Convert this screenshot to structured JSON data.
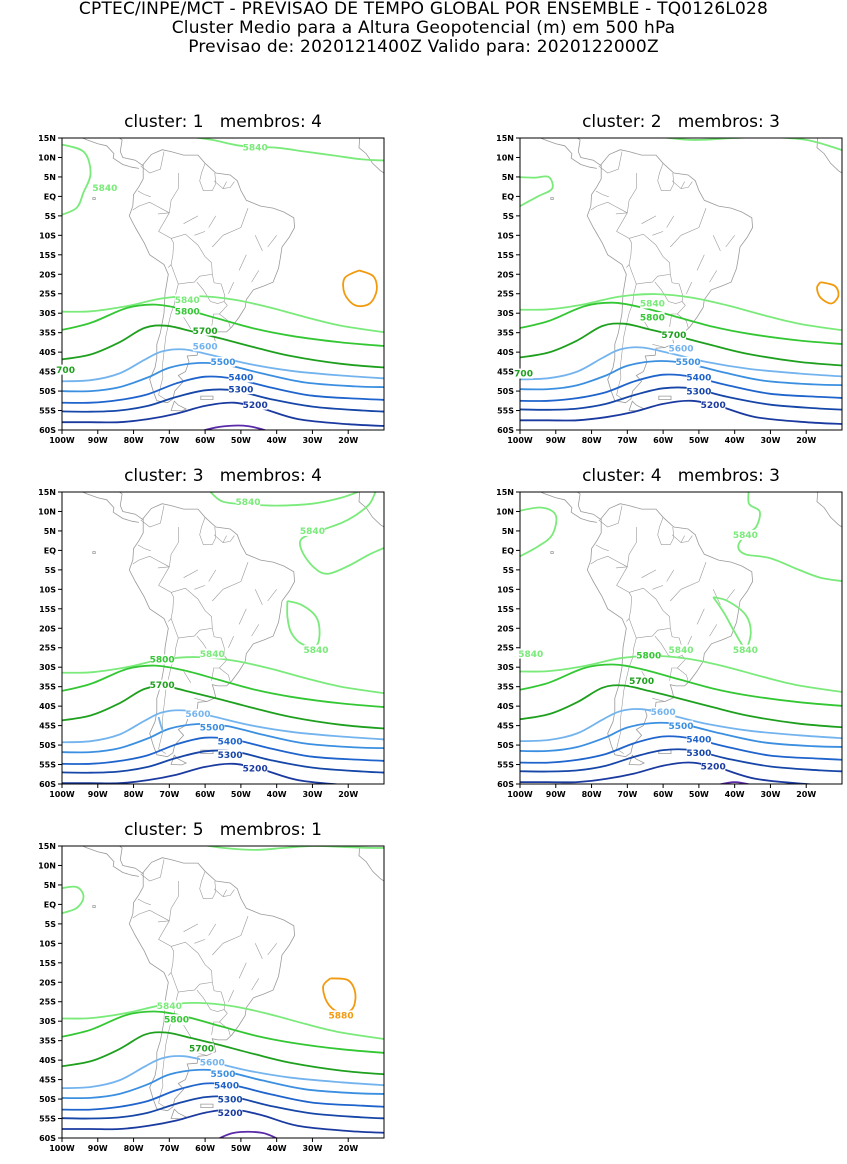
{
  "header": {
    "line1": "CPTEC/INPE/MCT - PREVISAO DE TEMPO GLOBAL POR ENSEMBLE - TQ0126L028",
    "line2": "Cluster Medio para a Altura Geopotencial (m) em 500 hPa",
    "line3": "Previsao de: 2020121400Z    Valido para: 2020122000Z"
  },
  "lat_ticks": [
    "15N",
    "10N",
    "5N",
    "EQ",
    "5S",
    "10S",
    "15S",
    "20S",
    "25S",
    "30S",
    "35S",
    "40S",
    "45S",
    "50S",
    "55S",
    "60S"
  ],
  "lon_ticks": [
    "100W",
    "90W",
    "80W",
    "70W",
    "60W",
    "50W",
    "40W",
    "30W",
    "20W"
  ],
  "colors": {
    "c5840": "#7aea7a",
    "c5800": "#34c734",
    "c5700": "#1ea01e",
    "c5600": "#74b4ee",
    "c5500": "#3b8fe0",
    "c5400": "#1f64cc",
    "c5300": "#1646a8",
    "c5200": "#1a3aa0",
    "c5100": "#5a2aa8",
    "c5880": "#f29a0e",
    "land": "#9a9a9a"
  },
  "clusters": [
    {
      "title": "cluster: 1   membros: 4",
      "labels": [
        {
          "text": "5840",
          "level": "c5840",
          "lon": -46,
          "lat": 12.6
        },
        {
          "text": "5840",
          "level": "c5840",
          "lon": -88,
          "lat": 2.2
        },
        {
          "text": "5840",
          "level": "c5840",
          "lon": -65,
          "lat": -26.5
        },
        {
          "text": "5800",
          "level": "c5800",
          "lon": -65,
          "lat": -29.5
        },
        {
          "text": "5700",
          "level": "c5700",
          "lon": -60,
          "lat": -34.5
        },
        {
          "text": "700",
          "level": "c5700",
          "lon": -99,
          "lat": -44.5
        },
        {
          "text": "5600",
          "level": "c5600",
          "lon": -60,
          "lat": -38.5
        },
        {
          "text": "5500",
          "level": "c5500",
          "lon": -55,
          "lat": -42.5
        },
        {
          "text": "5400",
          "level": "c5400",
          "lon": -50,
          "lat": -46.5
        },
        {
          "text": "5300",
          "level": "c5300",
          "lon": -50,
          "lat": -49.5
        },
        {
          "text": "5200",
          "level": "c5200",
          "lon": -46,
          "lat": -53.5
        }
      ]
    },
    {
      "title": "cluster: 2   membros: 3",
      "labels": [
        {
          "text": "5840",
          "level": "c5840",
          "lon": -63,
          "lat": -27.5
        },
        {
          "text": "5800",
          "level": "c5800",
          "lon": -63,
          "lat": -31
        },
        {
          "text": "5700",
          "level": "c5700",
          "lon": -57,
          "lat": -35.5
        },
        {
          "text": "700",
          "level": "c5700",
          "lon": -99,
          "lat": -45.5
        },
        {
          "text": "5600",
          "level": "c5600",
          "lon": -55,
          "lat": -39
        },
        {
          "text": "5500",
          "level": "c5500",
          "lon": -53,
          "lat": -42.5
        },
        {
          "text": "5400",
          "level": "c5400",
          "lon": -50,
          "lat": -46.5
        },
        {
          "text": "5300",
          "level": "c5300",
          "lon": -50,
          "lat": -50
        },
        {
          "text": "5200",
          "level": "c5200",
          "lon": -46,
          "lat": -53.5
        }
      ]
    },
    {
      "title": "cluster: 3   membros: 4",
      "labels": [
        {
          "text": "5840",
          "level": "c5840",
          "lon": -48,
          "lat": 12.5
        },
        {
          "text": "5840",
          "level": "c5840",
          "lon": -30,
          "lat": 5
        },
        {
          "text": "5840",
          "level": "c5840",
          "lon": -29,
          "lat": -25.5
        },
        {
          "text": "5840",
          "level": "c5840",
          "lon": -58,
          "lat": -26.5
        },
        {
          "text": "5800",
          "level": "c5800",
          "lon": -72,
          "lat": -28
        },
        {
          "text": "5700",
          "level": "c5700",
          "lon": -72,
          "lat": -34.5
        },
        {
          "text": "5600",
          "level": "c5600",
          "lon": -62,
          "lat": -42
        },
        {
          "text": "5500",
          "level": "c5500",
          "lon": -58,
          "lat": -45.5
        },
        {
          "text": "5400",
          "level": "c5400",
          "lon": -53,
          "lat": -49
        },
        {
          "text": "5300",
          "level": "c5300",
          "lon": -53,
          "lat": -52.5
        },
        {
          "text": "5200",
          "level": "c5200",
          "lon": -46,
          "lat": -56
        }
      ]
    },
    {
      "title": "cluster: 4   membros: 3",
      "labels": [
        {
          "text": "5840",
          "level": "c5840",
          "lon": -37,
          "lat": 4
        },
        {
          "text": "5840",
          "level": "c5840",
          "lon": -37,
          "lat": -25.5
        },
        {
          "text": "5840",
          "level": "c5840",
          "lon": -97,
          "lat": -26.5
        },
        {
          "text": "5840",
          "level": "c5840",
          "lon": -55,
          "lat": -25.5
        },
        {
          "text": "5800",
          "level": "c5800",
          "lon": -64,
          "lat": -27
        },
        {
          "text": "5700",
          "level": "c5700",
          "lon": -66,
          "lat": -33.5
        },
        {
          "text": "5600",
          "level": "c5600",
          "lon": -60,
          "lat": -41.5
        },
        {
          "text": "5500",
          "level": "c5500",
          "lon": -55,
          "lat": -45
        },
        {
          "text": "5400",
          "level": "c5400",
          "lon": -50,
          "lat": -48.5
        },
        {
          "text": "5300",
          "level": "c5300",
          "lon": -50,
          "lat": -52
        },
        {
          "text": "5200",
          "level": "c5200",
          "lon": -46,
          "lat": -55.5
        }
      ]
    },
    {
      "title": "cluster: 5   membros: 1",
      "labels": [
        {
          "text": "5840",
          "level": "c5840",
          "lon": -70,
          "lat": -26
        },
        {
          "text": "5800",
          "level": "c5800",
          "lon": -68,
          "lat": -29.5
        },
        {
          "text": "5880",
          "level": "c5880",
          "lon": -22,
          "lat": -28.5
        },
        {
          "text": "5700",
          "level": "c5700",
          "lon": -61,
          "lat": -37
        },
        {
          "text": "5600",
          "level": "c5600",
          "lon": -58,
          "lat": -40.5
        },
        {
          "text": "5500",
          "level": "c5500",
          "lon": -55,
          "lat": -43.5
        },
        {
          "text": "5400",
          "level": "c5400",
          "lon": -54,
          "lat": -46.5
        },
        {
          "text": "5300",
          "level": "c5300",
          "lon": -53,
          "lat": -50
        },
        {
          "text": "5200",
          "level": "c5200",
          "lon": -53,
          "lat": -53.5
        }
      ]
    }
  ]
}
